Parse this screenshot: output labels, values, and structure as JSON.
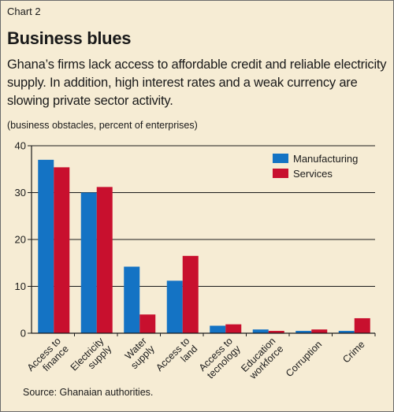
{
  "header": {
    "kicker": "Chart 2",
    "title": "Business blues",
    "subtitle": "Ghana’s firms lack access to affordable credit and reliable electricity supply. In addition, high interest rates and a weak currency are slowing private sector activity.",
    "unit_note": "(business obstacles, percent of enterprises)"
  },
  "footer": {
    "source": "Source: Ghanaian authorities."
  },
  "colors": {
    "manufacturing": "#1473c4",
    "services": "#c8102e",
    "background": "#f6ecd4"
  },
  "chart_data": {
    "type": "bar",
    "title": "Business blues",
    "ylabel": "(business obstacles, percent of enterprises)",
    "ylim": [
      0,
      40
    ],
    "yticks": [
      0,
      10,
      20,
      30,
      40
    ],
    "grid": true,
    "legend_position": "top-right",
    "categories": [
      [
        "Access to",
        "finance"
      ],
      [
        "Electricity",
        "supply"
      ],
      [
        "Water",
        "supply"
      ],
      [
        "Access to",
        "land"
      ],
      [
        "Access to",
        "tecnology"
      ],
      [
        "Education",
        "workforce"
      ],
      [
        "Corruption"
      ],
      [
        "Crime"
      ]
    ],
    "series": [
      {
        "name": "Manufacturing",
        "values": [
          37,
          30,
          14.2,
          11.2,
          1.6,
          0.8,
          0.5,
          0.5
        ]
      },
      {
        "name": "Services",
        "values": [
          35.4,
          31.2,
          4,
          16.5,
          1.9,
          0.5,
          0.8,
          3.2
        ]
      }
    ]
  }
}
